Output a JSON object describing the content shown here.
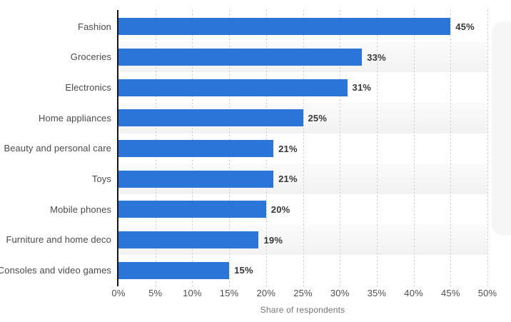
{
  "chart_data": {
    "type": "bar",
    "orientation": "horizontal",
    "categories": [
      "Fashion",
      "Groceries",
      "Electronics",
      "Home appliances",
      "Beauty and personal care",
      "Toys",
      "Mobile phones",
      "Furniture and home deco",
      "Consoles and video games"
    ],
    "values": [
      45,
      33,
      31,
      25,
      21,
      21,
      20,
      19,
      15
    ],
    "value_labels": [
      "45%",
      "33%",
      "31%",
      "25%",
      "21%",
      "21%",
      "20%",
      "19%",
      "15%"
    ],
    "xlabel": "Share of respondents",
    "x_ticks": [
      "0%",
      "5%",
      "10%",
      "15%",
      "20%",
      "25%",
      "30%",
      "35%",
      "40%",
      "45%",
      "50%"
    ],
    "xlim": [
      0,
      50
    ],
    "grid": "vertical-dotted",
    "legend": "none",
    "row_striping": "alternate",
    "colors": {
      "bar": "#2b75d9",
      "axis_line": "#161616",
      "gridline": "#c9c9c9",
      "row_stripe": "#f2f2f2",
      "category_text": "#4a4a4a",
      "value_text": "#373737",
      "tick_text": "#4d4d4d",
      "axis_title_text": "#767676"
    }
  }
}
